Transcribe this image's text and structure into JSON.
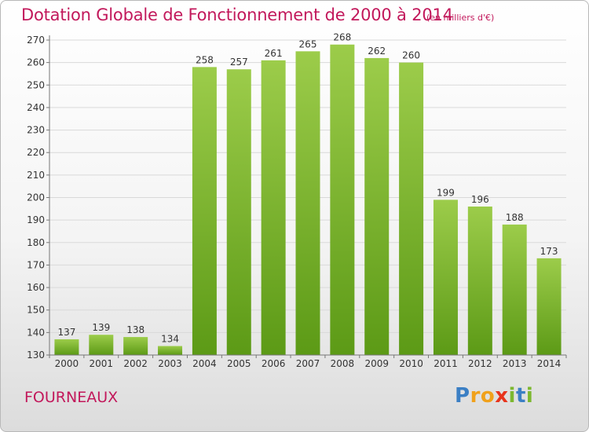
{
  "title": "Dotation Globale de Fonctionnement de 2000 à 2014",
  "unit": "(en milliers d'€)",
  "commune": "FOURNEAUX",
  "logo": {
    "text": "Proxiti",
    "letters": [
      {
        "ch": "P",
        "color": "#3b7fc4"
      },
      {
        "ch": "r",
        "color": "#f0a11b"
      },
      {
        "ch": "o",
        "color": "#f0a11b"
      },
      {
        "ch": "x",
        "color": "#e8341c"
      },
      {
        "ch": "i",
        "color": "#7cb82f"
      },
      {
        "ch": "t",
        "color": "#3b7fc4"
      },
      {
        "ch": "i",
        "color": "#7cb82f"
      }
    ]
  },
  "colors": {
    "title": "#c2185b",
    "bar_top": "#9ccc4a",
    "bar_bottom": "#5c9a16",
    "grid": "#d9d9d9",
    "axis": "#777777",
    "text": "#333333"
  },
  "chart_data": {
    "type": "bar",
    "title": "Dotation Globale de Fonctionnement de 2000 à 2014",
    "xlabel": "",
    "ylabel": "",
    "categories": [
      "2000",
      "2001",
      "2002",
      "2003",
      "2004",
      "2005",
      "2006",
      "2007",
      "2008",
      "2009",
      "2010",
      "2011",
      "2012",
      "2013",
      "2014"
    ],
    "values": [
      137,
      139,
      138,
      134,
      258,
      257,
      261,
      265,
      268,
      262,
      260,
      199,
      196,
      188,
      173
    ],
    "ylim": [
      130,
      270
    ],
    "yticks": [
      130,
      140,
      150,
      160,
      170,
      180,
      190,
      200,
      210,
      220,
      230,
      240,
      250,
      260,
      270
    ],
    "grid": true,
    "legend": "none"
  }
}
